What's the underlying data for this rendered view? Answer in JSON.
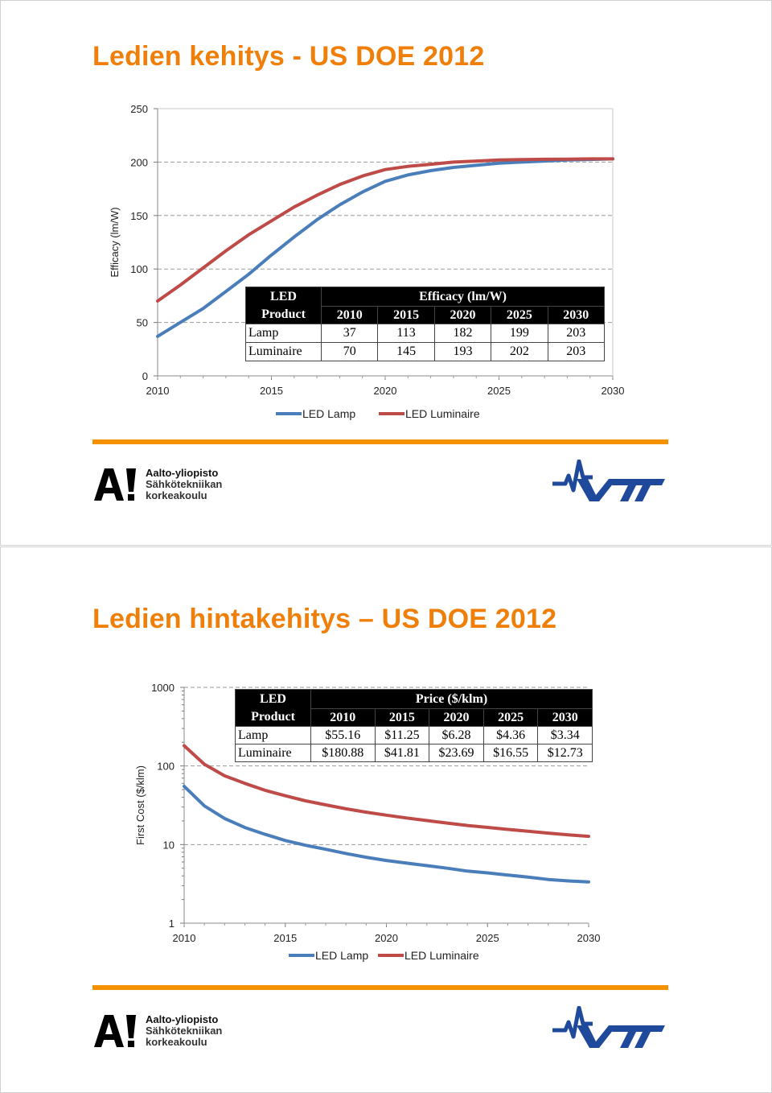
{
  "slides": [
    {
      "title": "Ledien kehitys - US DOE 2012",
      "chart_data": {
        "type": "line",
        "ylabel": "Efficacy (lm/W)",
        "xlabel": "",
        "x_ticks": [
          "2010",
          "2015",
          "2020",
          "2025",
          "2030"
        ],
        "y_ticks": [
          "0",
          "50",
          "100",
          "150",
          "200",
          "250"
        ],
        "ylim": [
          0,
          250
        ],
        "xlim": [
          2010,
          2030
        ],
        "grid": "dashed horizontal",
        "legend_position": "bottom",
        "series": [
          {
            "name": "LED Lamp",
            "color": "#4a7ebb",
            "x": [
              2010,
              2011,
              2012,
              2013,
              2014,
              2015,
              2016,
              2017,
              2018,
              2019,
              2020,
              2021,
              2022,
              2023,
              2024,
              2025,
              2026,
              2027,
              2028,
              2029,
              2030
            ],
            "y": [
              37,
              50,
              63,
              79,
              95,
              113,
              130,
              146,
              160,
              172,
              182,
              188,
              192,
              195,
              197,
              199,
              200,
              201,
              202,
              202.5,
              203
            ]
          },
          {
            "name": "LED Luminaire",
            "color": "#be4b48",
            "x": [
              2010,
              2011,
              2012,
              2013,
              2014,
              2015,
              2016,
              2017,
              2018,
              2019,
              2020,
              2021,
              2022,
              2023,
              2024,
              2025,
              2026,
              2027,
              2028,
              2029,
              2030
            ],
            "y": [
              70,
              85,
              101,
              117,
              132,
              145,
              158,
              169,
              179,
              187,
              193,
              196,
              198,
              200,
              201,
              202,
              202.3,
              202.6,
              202.8,
              203,
              203
            ]
          }
        ]
      },
      "table": {
        "corner": [
          "LED",
          "Product"
        ],
        "group_header": "Efficacy (lm/W)",
        "years": [
          "2010",
          "2015",
          "2020",
          "2025",
          "2030"
        ],
        "rows": [
          {
            "label": "Lamp",
            "values": [
              "37",
              "113",
              "182",
              "199",
              "203"
            ]
          },
          {
            "label": "Luminaire",
            "values": [
              "70",
              "145",
              "193",
              "202",
              "203"
            ]
          }
        ]
      }
    },
    {
      "title": "Ledien hintakehitys – US DOE 2012",
      "chart_data": {
        "type": "line",
        "ylabel": "First Cost ($/klm)",
        "xlabel": "",
        "y_scale": "log",
        "x_ticks": [
          "2010",
          "2015",
          "2020",
          "2025",
          "2030"
        ],
        "y_ticks": [
          "1",
          "10",
          "100",
          "1000"
        ],
        "ylim": [
          1,
          1000
        ],
        "xlim": [
          2010,
          2030
        ],
        "grid": "dashed horizontal",
        "legend_position": "bottom",
        "series": [
          {
            "name": "LED Lamp",
            "color": "#4a7ebb",
            "x": [
              2010,
              2011,
              2012,
              2013,
              2014,
              2015,
              2016,
              2017,
              2018,
              2019,
              2020,
              2021,
              2022,
              2023,
              2024,
              2025,
              2026,
              2027,
              2028,
              2029,
              2030
            ],
            "y": [
              55.16,
              31,
              21.5,
              16.5,
              13.5,
              11.25,
              9.8,
              8.7,
              7.7,
              6.9,
              6.28,
              5.8,
              5.4,
              5.0,
              4.6,
              4.36,
              4.1,
              3.85,
              3.6,
              3.45,
              3.34
            ]
          },
          {
            "name": "LED Luminaire",
            "color": "#be4b48",
            "x": [
              2010,
              2011,
              2012,
              2013,
              2014,
              2015,
              2016,
              2017,
              2018,
              2019,
              2020,
              2021,
              2022,
              2023,
              2024,
              2025,
              2026,
              2027,
              2028,
              2029,
              2030
            ],
            "y": [
              180.88,
              105,
              75,
              60,
              49,
              41.81,
              36,
              32,
              28.5,
              25.8,
              23.69,
              21.8,
              20.2,
              18.8,
              17.5,
              16.55,
              15.6,
              14.8,
              14,
              13.3,
              12.73
            ]
          }
        ]
      },
      "table": {
        "corner": [
          "LED",
          "Product"
        ],
        "group_header": "Price ($/klm)",
        "years": [
          "2010",
          "2015",
          "2020",
          "2025",
          "2030"
        ],
        "rows": [
          {
            "label": "Lamp",
            "values": [
              "$55.16",
              "$11.25",
              "$6.28",
              "$4.36",
              "$3.34"
            ]
          },
          {
            "label": "Luminaire",
            "values": [
              "$180.88",
              "$41.81",
              "$23.69",
              "$16.55",
              "$12.73"
            ]
          }
        ]
      }
    }
  ],
  "footer": {
    "aalto_line1": "Aalto-yliopisto",
    "aalto_line2": "Sähkötekniikan",
    "aalto_line3": "korkeakoulu",
    "aalto_mark": "A!",
    "vtt_text": "VTT",
    "aalto_color": "#000000",
    "vtt_color": "#1f4a9c",
    "accent_color": "#f49100"
  }
}
